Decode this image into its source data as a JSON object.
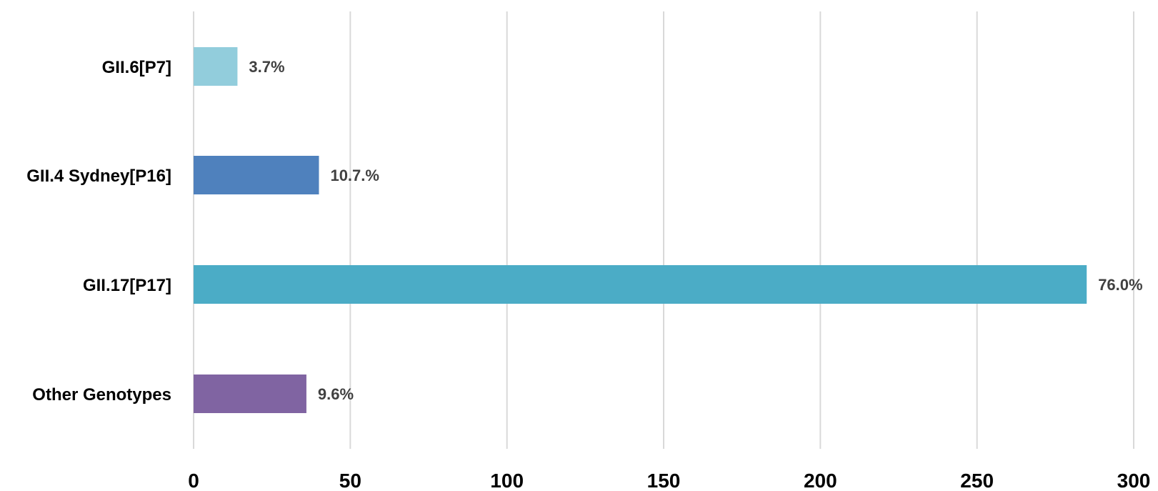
{
  "chart_data": {
    "type": "bar",
    "orientation": "horizontal",
    "title": "",
    "xlabel": "",
    "ylabel": "",
    "categories": [
      "GII.6[P7]",
      "GII.4 Sydney[P16]",
      "GII.17[P17]",
      "Other Genotypes"
    ],
    "values": [
      14,
      40,
      285,
      36
    ],
    "data_labels": [
      "3.7%",
      "10.7.%",
      "76.0%",
      "9.6%"
    ],
    "colors": [
      "#92cddc",
      "#4f81bd",
      "#4bacc6",
      "#8064a2"
    ],
    "xlim": [
      0,
      300
    ],
    "x_ticks": [
      "0",
      "50",
      "100",
      "150",
      "200",
      "250",
      "300"
    ],
    "grid": "vertical",
    "legend": "none"
  }
}
